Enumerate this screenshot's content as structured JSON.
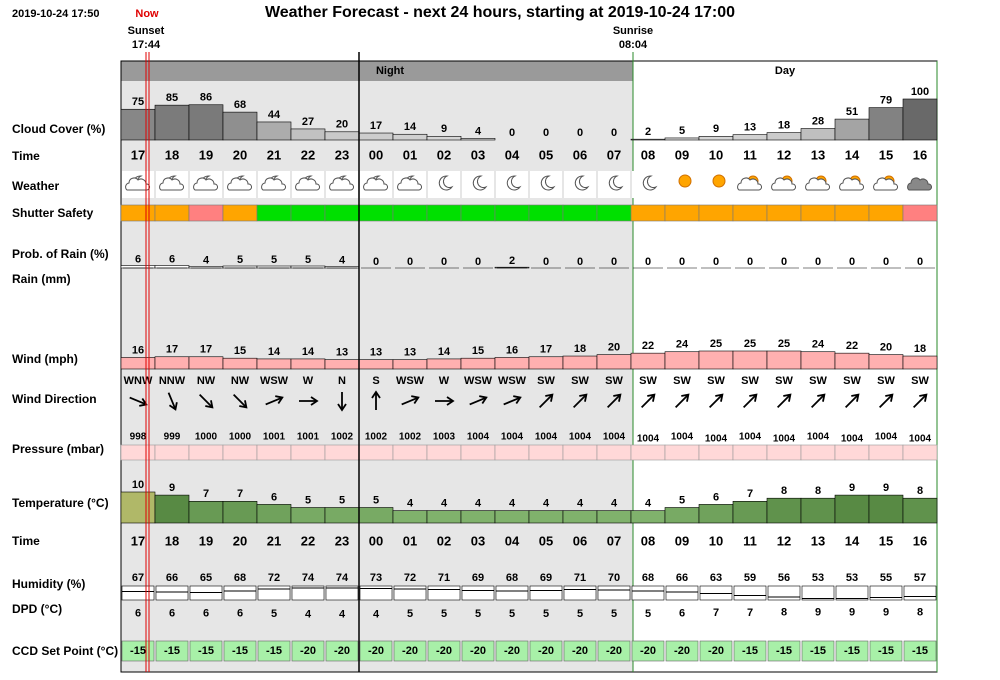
{
  "header": {
    "timestamp": "2019-10-24 17:50",
    "now": "Now",
    "title": "Weather Forecast - next 24 hours, starting at 2019-10-24 17:00",
    "sunset_label": "Sunset",
    "sunset_time": "17:44",
    "sunrise_label": "Sunrise",
    "sunrise_time": "08:04",
    "night": "Night",
    "day": "Day"
  },
  "hours": [
    "17",
    "18",
    "19",
    "20",
    "21",
    "22",
    "23",
    "00",
    "01",
    "02",
    "03",
    "04",
    "05",
    "06",
    "07",
    "08",
    "09",
    "10",
    "11",
    "12",
    "13",
    "14",
    "15",
    "16"
  ],
  "rows": {
    "cloud_cover": {
      "label": "Cloud Cover (%)",
      "values": [
        75,
        85,
        86,
        68,
        44,
        27,
        20,
        17,
        14,
        9,
        4,
        0,
        0,
        0,
        0,
        2,
        5,
        9,
        13,
        18,
        28,
        51,
        79,
        100
      ]
    },
    "time": {
      "label": "Time"
    },
    "weather": {
      "label": "Weather"
    },
    "shutter_safety": {
      "label": "Shutter Safety",
      "colors": [
        "#ffa500",
        "#ffa500",
        "#ff8080",
        "#ffa500",
        "#00e000",
        "#00e000",
        "#00e000",
        "#00e000",
        "#00e000",
        "#00e000",
        "#00e000",
        "#00e000",
        "#00e000",
        "#00e000",
        "#00e000",
        "#ffa500",
        "#ffa500",
        "#ffa500",
        "#ffa500",
        "#ffa500",
        "#ffa500",
        "#ffa500",
        "#ffa500",
        "#ff8080"
      ]
    },
    "prob_rain": {
      "label": "Prob. of Rain (%)",
      "values": [
        6,
        6,
        4,
        5,
        5,
        5,
        4,
        0,
        0,
        0,
        0,
        2,
        0,
        0,
        0,
        0,
        0,
        0,
        0,
        0,
        0,
        0,
        0,
        0
      ]
    },
    "rain": {
      "label": "Rain (mm)"
    },
    "wind": {
      "label": "Wind (mph)",
      "values": [
        16,
        17,
        17,
        15,
        14,
        14,
        13,
        13,
        13,
        14,
        15,
        16,
        17,
        18,
        20,
        22,
        24,
        25,
        25,
        25,
        24,
        22,
        20,
        18
      ]
    },
    "wind_direction": {
      "label": "Wind Direction",
      "values": [
        "WNW",
        "NNW",
        "NW",
        "NW",
        "WSW",
        "W",
        "N",
        "S",
        "WSW",
        "W",
        "WSW",
        "WSW",
        "SW",
        "SW",
        "SW",
        "SW",
        "SW",
        "SW",
        "SW",
        "SW",
        "SW",
        "SW",
        "SW",
        "SW"
      ]
    },
    "pressure": {
      "label": "Pressure (mbar)",
      "values": [
        998,
        999,
        1000,
        1000,
        1001,
        1001,
        1002,
        1002,
        1002,
        1003,
        1004,
        1004,
        1004,
        1004,
        1004,
        1004,
        1004,
        1004,
        1004,
        1004,
        1004,
        1004,
        1004,
        1004
      ]
    },
    "temperature": {
      "label": "Temperature (°C)",
      "values": [
        10,
        9,
        7,
        7,
        6,
        5,
        5,
        5,
        4,
        4,
        4,
        4,
        4,
        4,
        4,
        4,
        5,
        6,
        7,
        8,
        8,
        9,
        9,
        8
      ]
    },
    "time2": {
      "label": "Time"
    },
    "humidity": {
      "label": "Humidity (%)",
      "values": [
        67,
        66,
        65,
        68,
        72,
        74,
        74,
        73,
        72,
        71,
        69,
        68,
        69,
        71,
        70,
        68,
        66,
        63,
        59,
        56,
        53,
        53,
        55,
        57
      ]
    },
    "dpd": {
      "label": "DPD (°C)",
      "values": [
        6,
        6,
        6,
        6,
        5,
        4,
        4,
        4,
        5,
        5,
        5,
        5,
        5,
        5,
        5,
        5,
        6,
        7,
        7,
        8,
        9,
        9,
        9,
        8
      ]
    },
    "ccd": {
      "label": "CCD Set Point (°C)",
      "values": [
        -15,
        -15,
        -15,
        -15,
        -15,
        -20,
        -20,
        -20,
        -20,
        -20,
        -20,
        -20,
        -20,
        -20,
        -20,
        -20,
        -20,
        -20,
        -15,
        -15,
        -15,
        -15,
        -15,
        -15
      ]
    }
  }
}
